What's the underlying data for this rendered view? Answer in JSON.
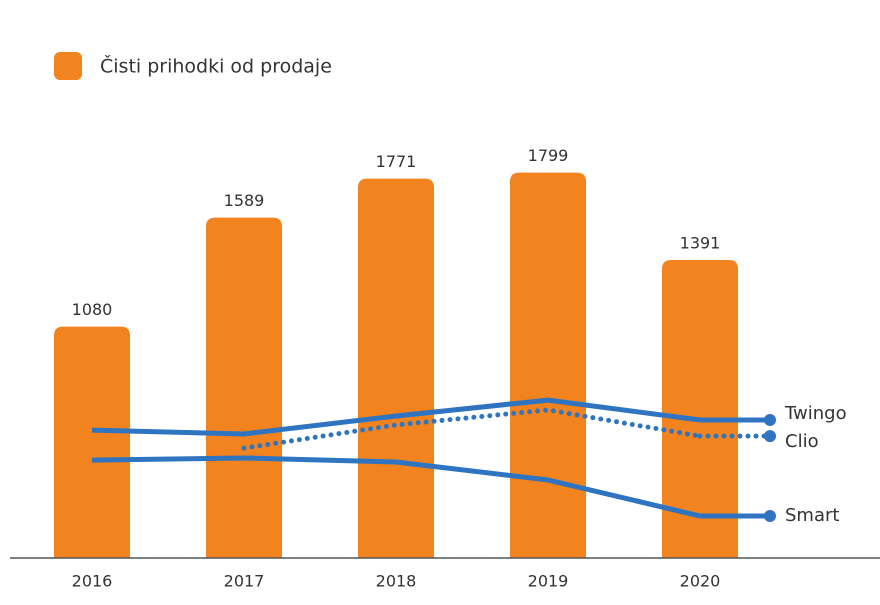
{
  "chart_data": {
    "type": "bar",
    "categories": [
      "2016",
      "2017",
      "2018",
      "2019",
      "2020"
    ],
    "ylim": [
      0,
      2600
    ],
    "legend": "top-left",
    "series": [
      {
        "name": "Čisti prihodki od prodaje",
        "type": "bar",
        "color": "#f2831f",
        "values": [
          1080,
          1589,
          1771,
          1799,
          1391
        ]
      },
      {
        "name": "Twingo",
        "type": "line",
        "style": "solid",
        "color": "#2f74c0",
        "values": [
          597,
          579,
          663,
          737,
          644
        ]
      },
      {
        "name": "Clio",
        "type": "line",
        "style": "dotted",
        "color": "#2f74c0",
        "values": [
          null,
          513,
          621,
          691,
          569
        ]
      },
      {
        "name": "Smart",
        "type": "line",
        "style": "solid",
        "color": "#2f74c0",
        "values": [
          457,
          467,
          448,
          364,
          196
        ]
      }
    ]
  }
}
